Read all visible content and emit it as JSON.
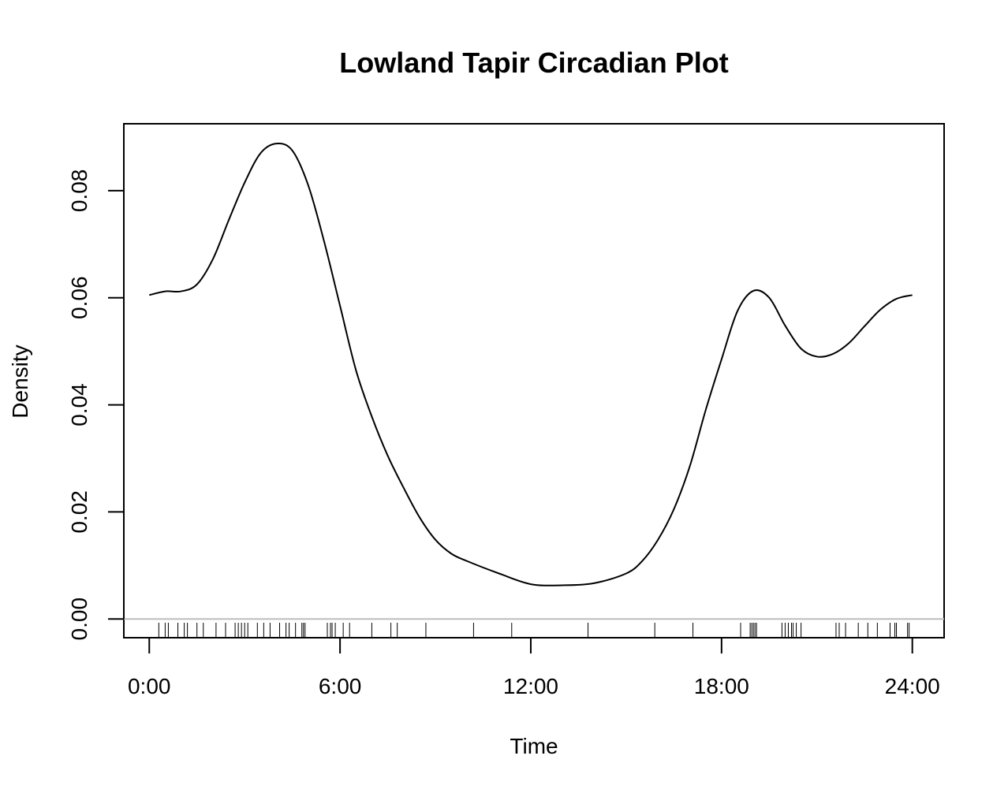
{
  "chart_data": {
    "type": "line",
    "title": "Lowland Tapir Circadian Plot",
    "xlabel": "Time",
    "ylabel": "Density",
    "xlim": [
      -0.8,
      25
    ],
    "ylim": [
      -0.0035,
      0.0925
    ],
    "x_ticks": [
      {
        "value": 0,
        "label": "0:00"
      },
      {
        "value": 6,
        "label": "6:00"
      },
      {
        "value": 12,
        "label": "12:00"
      },
      {
        "value": 18,
        "label": "18:00"
      },
      {
        "value": 24,
        "label": "24:00"
      }
    ],
    "y_ticks": [
      {
        "value": 0,
        "label": "0.00"
      },
      {
        "value": 0.02,
        "label": "0.02"
      },
      {
        "value": 0.04,
        "label": "0.04"
      },
      {
        "value": 0.06,
        "label": "0.06"
      },
      {
        "value": 0.08,
        "label": "0.08"
      }
    ],
    "grid": false,
    "baseline_y": 0,
    "series": [
      {
        "x": [
          0,
          0.5,
          1,
          1.5,
          2,
          2.5,
          3,
          3.5,
          4,
          4.5,
          5,
          5.5,
          6,
          6.5,
          7,
          7.5,
          8,
          8.5,
          9,
          9.5,
          10,
          11,
          12,
          13,
          14,
          15,
          15.5,
          16,
          16.5,
          17,
          17.5,
          18,
          18.5,
          19,
          19.5,
          20,
          20.5,
          21,
          21.5,
          22,
          22.5,
          23,
          23.5,
          24
        ],
        "y": [
          0.0605,
          0.0612,
          0.0612,
          0.0625,
          0.0672,
          0.0745,
          0.0815,
          0.087,
          0.0888,
          0.0875,
          0.081,
          0.0705,
          0.0585,
          0.0465,
          0.0378,
          0.0305,
          0.0245,
          0.019,
          0.0148,
          0.0122,
          0.0108,
          0.0085,
          0.0065,
          0.0063,
          0.0067,
          0.0085,
          0.0108,
          0.0148,
          0.0205,
          0.0285,
          0.039,
          0.0485,
          0.0575,
          0.0613,
          0.06,
          0.0548,
          0.0505,
          0.049,
          0.0495,
          0.0515,
          0.0547,
          0.0578,
          0.0598,
          0.0605
        ]
      }
    ],
    "rug": [
      0.3,
      0.5,
      0.6,
      0.9,
      1.1,
      1.2,
      1.5,
      1.7,
      2.1,
      2.4,
      2.7,
      2.8,
      2.9,
      3.0,
      3.1,
      3.4,
      3.6,
      3.8,
      4.1,
      4.3,
      4.4,
      4.6,
      4.8,
      4.85,
      4.9,
      5.6,
      5.7,
      5.75,
      5.85,
      6.1,
      6.3,
      7.0,
      7.6,
      7.8,
      8.7,
      10.2,
      11.4,
      13.8,
      15.9,
      17.1,
      18.6,
      18.9,
      18.95,
      19.0,
      19.05,
      19.1,
      19.9,
      20.0,
      20.1,
      20.2,
      20.25,
      20.35,
      20.5,
      21.6,
      21.7,
      21.9,
      22.3,
      22.6,
      22.9,
      23.3,
      23.45,
      23.5,
      23.85,
      23.9
    ]
  }
}
